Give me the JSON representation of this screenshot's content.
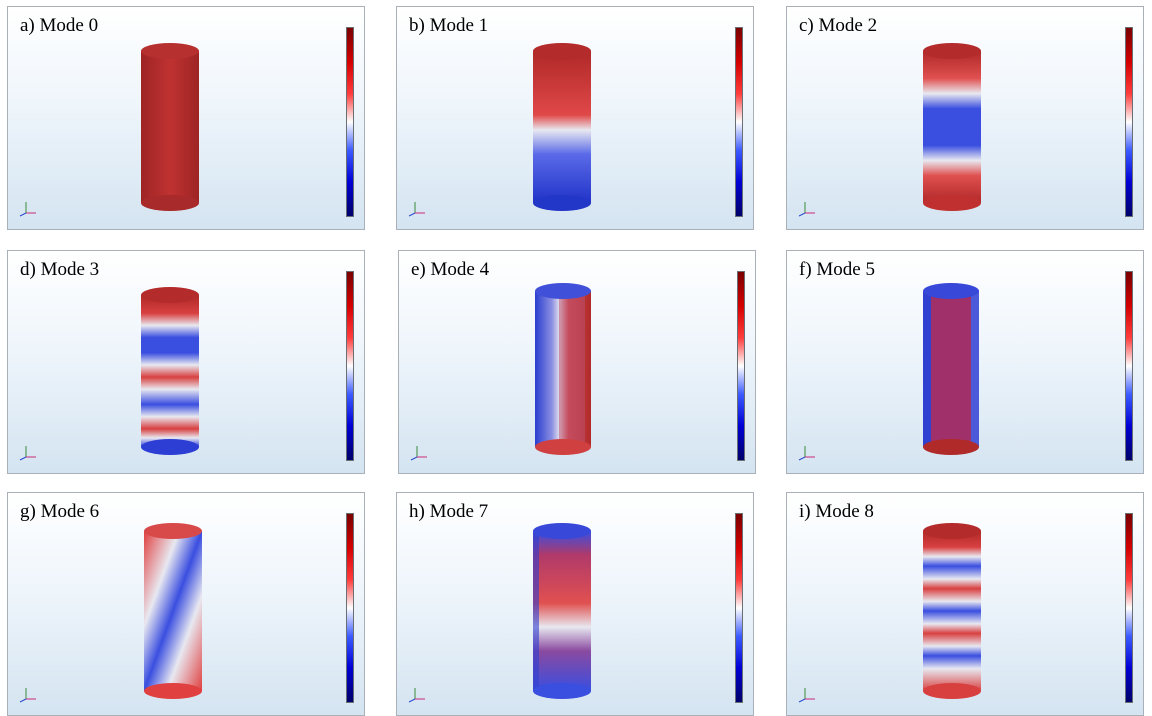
{
  "panels": [
    {
      "title": "a) Mode 0",
      "pattern": "uniform"
    },
    {
      "title": "b) Mode 1",
      "pattern": "axial-1"
    },
    {
      "title": "c) Mode 2",
      "pattern": "axial-2"
    },
    {
      "title": "d) Mode 3",
      "pattern": "axial-3"
    },
    {
      "title": "e) Mode 4",
      "pattern": "azimuthal-1"
    },
    {
      "title": "f) Mode 5",
      "pattern": "radial-1"
    },
    {
      "title": "g) Mode 6",
      "pattern": "azimuthal-2"
    },
    {
      "title": "h) Mode 7",
      "pattern": "radial-2"
    },
    {
      "title": "i) Mode 8",
      "pattern": "axial-4"
    }
  ],
  "colors": {
    "red_dark": "#b22a2a",
    "red": "#e03535",
    "white": "#e8e8f0",
    "blue": "#2b3fd6",
    "blue_dark": "#1a2aa0"
  }
}
